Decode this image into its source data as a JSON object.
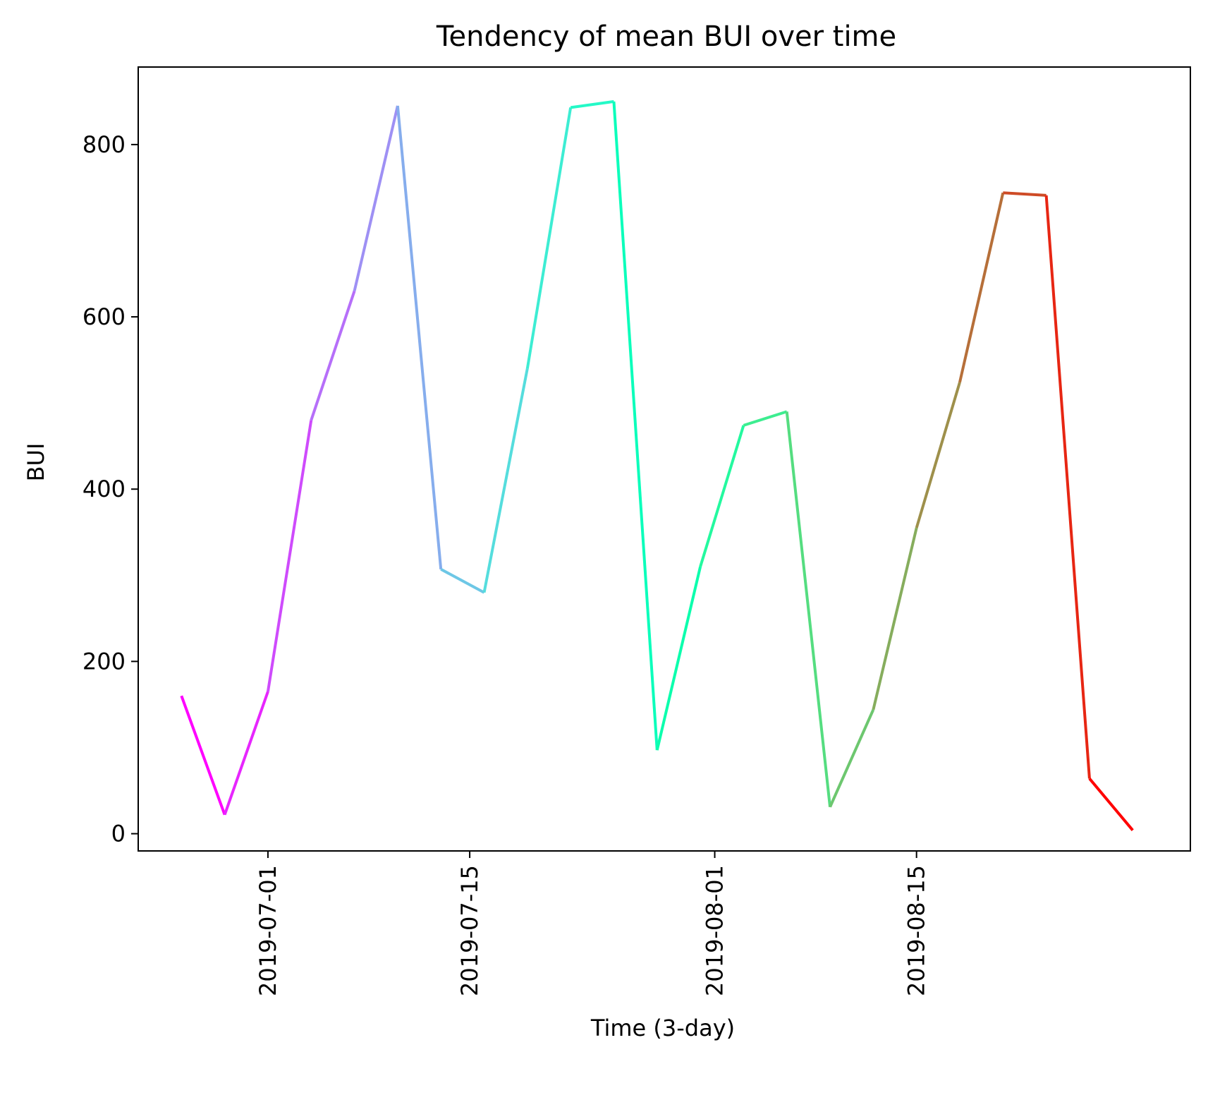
{
  "chart_data": {
    "type": "line",
    "title": "Tendency of mean BUI over time",
    "xlabel": "Time (3-day)",
    "ylabel": "BUI",
    "x_type": "date",
    "xlim": [
      "2019-06-22",
      "2019-09-03"
    ],
    "ylim": [
      -20,
      890
    ],
    "x_ticks": [
      "2019-07-01",
      "2019-07-15",
      "2019-08-01",
      "2019-08-15"
    ],
    "y_ticks": [
      0,
      200,
      400,
      600,
      800
    ],
    "grid": false,
    "legend": false,
    "colormap": "rainbow",
    "series": [
      {
        "x": [
          "2019-06-25",
          "2019-06-28",
          "2019-07-01",
          "2019-07-04",
          "2019-07-07",
          "2019-07-10",
          "2019-07-13",
          "2019-07-16",
          "2019-07-19",
          "2019-07-22",
          "2019-07-25",
          "2019-07-28",
          "2019-07-31",
          "2019-08-03",
          "2019-08-06",
          "2019-08-09",
          "2019-08-12",
          "2019-08-15",
          "2019-08-18",
          "2019-08-21",
          "2019-08-24",
          "2019-08-27",
          "2019-08-30"
        ],
        "values": [
          160,
          22,
          165,
          480,
          630,
          845,
          307,
          280,
          540,
          843,
          850,
          97,
          310,
          474,
          490,
          31,
          144,
          355,
          524,
          744,
          741,
          64,
          4
        ]
      }
    ]
  }
}
